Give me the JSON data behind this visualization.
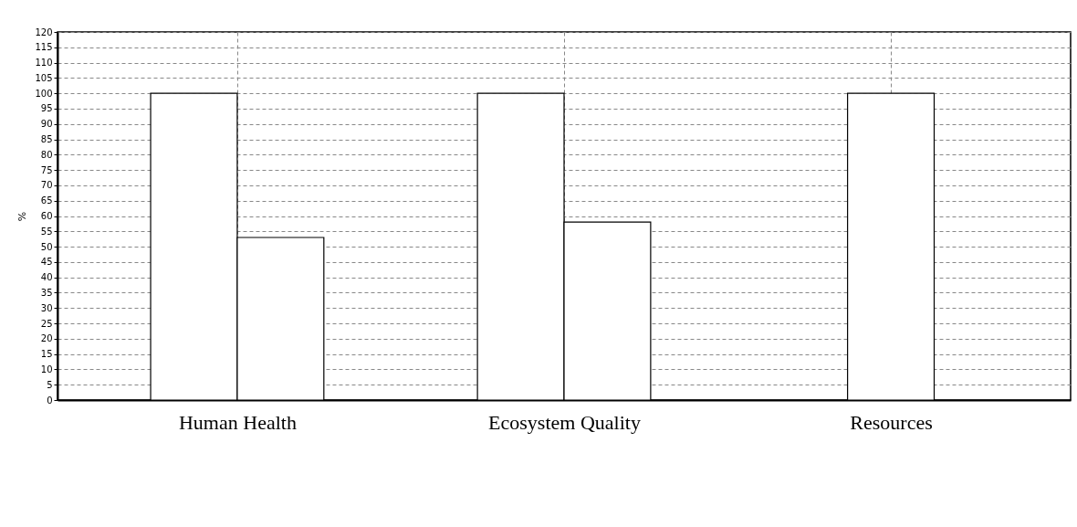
{
  "chart_data": {
    "type": "bar",
    "ylabel": "%",
    "categories": [
      "Human Health",
      "Ecosystem Quality",
      "Resources"
    ],
    "series": [
      {
        "color": "#ffffff",
        "values": [
          100,
          100,
          null
        ]
      },
      {
        "color": "#ffffff",
        "values": [
          53,
          58,
          100
        ]
      }
    ],
    "ylim": [
      0,
      120
    ],
    "yticks": [
      0,
      5,
      10,
      15,
      20,
      25,
      30,
      35,
      40,
      45,
      50,
      55,
      60,
      65,
      70,
      75,
      80,
      85,
      90,
      95,
      100,
      105,
      110,
      115,
      120
    ],
    "grid": true
  }
}
